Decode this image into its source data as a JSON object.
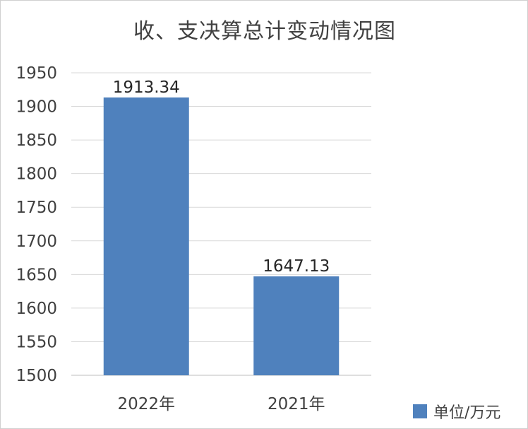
{
  "chart_data": {
    "type": "bar",
    "title": "收、支决算总计变动情况图",
    "categories": [
      "2022年",
      "2021年"
    ],
    "series": [
      {
        "name": "单位/万元",
        "values": [
          1913.34,
          1647.13
        ],
        "color": "#4f81bd"
      }
    ],
    "data_labels": [
      "1913.34",
      "1647.13"
    ],
    "ylim": [
      1500,
      1950
    ],
    "yticks": [
      1500,
      1550,
      1600,
      1650,
      1700,
      1750,
      1800,
      1850,
      1900,
      1950
    ],
    "grid": true,
    "legend_position": "bottom-right"
  }
}
